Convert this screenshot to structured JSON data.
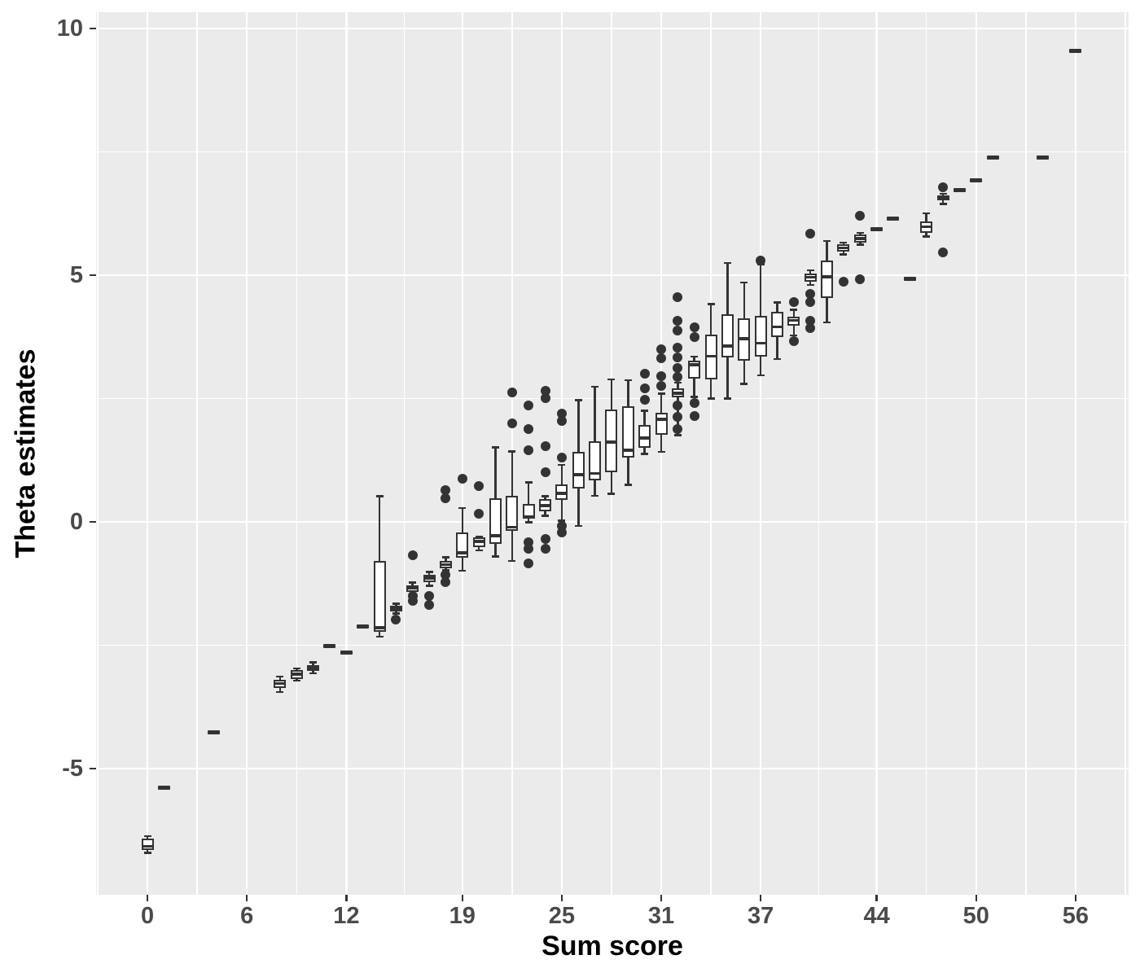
{
  "chart_data": {
    "type": "boxplot",
    "title": "",
    "xlabel": "Sum score",
    "ylabel": "Theta estimates",
    "xlim": [
      -3.1,
      59.2
    ],
    "ylim": [
      -7.56,
      10.33
    ],
    "grid": true,
    "legend": "none",
    "x_tick_values": [
      0,
      6,
      12,
      19,
      25,
      31,
      37,
      44,
      50,
      56
    ],
    "x_tick_labels": [
      "0",
      "6",
      "12",
      "19",
      "25",
      "31",
      "37",
      "44",
      "50",
      "56"
    ],
    "x_minor_breaks": [
      -3,
      3,
      9,
      15.5,
      22,
      28,
      34,
      40.5,
      47,
      53,
      59
    ],
    "y_tick_values": [
      10,
      5,
      0,
      -5
    ],
    "y_tick_labels": [
      "10",
      "5",
      "0",
      "-5"
    ],
    "y_minor_breaks": [
      7.5,
      2.5,
      -2.5
    ],
    "colors": {
      "panel_background": "#EBEBEB",
      "gridline": "#FFFFFF",
      "box_stroke": "#333333",
      "box_fill": "#FFFFFF",
      "outlier": "#333333",
      "tick_text": "#4A4A4A",
      "title_text": "#000000"
    },
    "boxes": [
      {
        "score": 0,
        "lo": -6.71,
        "q1": -6.66,
        "med": -6.58,
        "q3": -6.42,
        "hi": -6.37,
        "outliers": []
      },
      {
        "score": 1,
        "lo": -5.39,
        "q1": -5.39,
        "med": -5.39,
        "q3": -5.39,
        "hi": -5.39,
        "outliers": []
      },
      {
        "score": 4,
        "lo": -4.27,
        "q1": -4.27,
        "med": -4.27,
        "q3": -4.27,
        "hi": -4.27,
        "outliers": []
      },
      {
        "score": 8,
        "lo": -3.45,
        "q1": -3.37,
        "med": -3.28,
        "q3": -3.2,
        "hi": -3.14,
        "outliers": []
      },
      {
        "score": 9,
        "lo": -3.22,
        "q1": -3.18,
        "med": -3.09,
        "q3": -3.01,
        "hi": -2.97,
        "outliers": []
      },
      {
        "score": 10,
        "lo": -3.07,
        "q1": -3.02,
        "med": -2.96,
        "q3": -2.9,
        "hi": -2.85,
        "outliers": []
      },
      {
        "score": 11,
        "lo": -2.52,
        "q1": -2.52,
        "med": -2.52,
        "q3": -2.52,
        "hi": -2.52,
        "outliers": []
      },
      {
        "score": 12,
        "lo": -2.65,
        "q1": -2.65,
        "med": -2.65,
        "q3": -2.65,
        "hi": -2.65,
        "outliers": []
      },
      {
        "score": 13,
        "lo": -2.12,
        "q1": -2.12,
        "med": -2.12,
        "q3": -2.12,
        "hi": -2.12,
        "outliers": []
      },
      {
        "score": 14,
        "lo": -2.33,
        "q1": -2.23,
        "med": -2.15,
        "q3": -0.8,
        "hi": 0.52,
        "outliers": []
      },
      {
        "score": 15,
        "lo": -1.86,
        "q1": -1.82,
        "med": -1.75,
        "q3": -1.7,
        "hi": -1.66,
        "outliers": [
          -1.98
        ]
      },
      {
        "score": 16,
        "lo": -1.45,
        "q1": -1.42,
        "med": -1.35,
        "q3": -1.29,
        "hi": -1.23,
        "outliers": [
          -0.68,
          -1.5,
          -1.6
        ]
      },
      {
        "score": 17,
        "lo": -1.3,
        "q1": -1.22,
        "med": -1.14,
        "q3": -1.07,
        "hi": -1.02,
        "outliers": [
          -1.5,
          -1.68
        ]
      },
      {
        "score": 18,
        "lo": -0.98,
        "q1": -0.95,
        "med": -0.87,
        "q3": -0.79,
        "hi": -0.72,
        "outliers": [
          0.65,
          0.48,
          -1.08,
          -1.22
        ]
      },
      {
        "score": 19,
        "lo": -0.99,
        "q1": -0.73,
        "med": -0.63,
        "q3": -0.21,
        "hi": 0.28,
        "outliers": [
          0.88
        ]
      },
      {
        "score": 20,
        "lo": -0.58,
        "q1": -0.51,
        "med": -0.4,
        "q3": -0.32,
        "hi": -0.3,
        "outliers": [
          0.73,
          0.16
        ]
      },
      {
        "score": 21,
        "lo": -0.7,
        "q1": -0.44,
        "med": -0.28,
        "q3": 0.47,
        "hi": 1.51,
        "outliers": []
      },
      {
        "score": 22,
        "lo": -0.79,
        "q1": -0.19,
        "med": -0.11,
        "q3": 0.52,
        "hi": 1.43,
        "outliers": [
          2.63,
          1.99
        ]
      },
      {
        "score": 23,
        "lo": -0.01,
        "q1": 0.06,
        "med": 0.11,
        "q3": 0.37,
        "hi": 0.8,
        "outliers": [
          2.36,
          1.88,
          1.45,
          -0.42,
          -0.55,
          -0.84
        ]
      },
      {
        "score": 24,
        "lo": 0.12,
        "q1": 0.21,
        "med": 0.33,
        "q3": 0.46,
        "hi": 0.52,
        "outliers": [
          2.65,
          2.5,
          1.54,
          1.0,
          -0.35,
          -0.55
        ]
      },
      {
        "score": 25,
        "lo": 0.02,
        "q1": 0.45,
        "med": 0.58,
        "q3": 0.76,
        "hi": 1.15,
        "outliers": [
          2.2,
          2.05,
          1.3,
          -0.08,
          -0.22
        ]
      },
      {
        "score": 26,
        "lo": -0.08,
        "q1": 0.68,
        "med": 0.96,
        "q3": 1.42,
        "hi": 2.47,
        "outliers": []
      },
      {
        "score": 27,
        "lo": 0.53,
        "q1": 0.84,
        "med": 0.98,
        "q3": 1.64,
        "hi": 2.74,
        "outliers": []
      },
      {
        "score": 28,
        "lo": 0.57,
        "q1": 1.01,
        "med": 1.62,
        "q3": 2.27,
        "hi": 2.89,
        "outliers": []
      },
      {
        "score": 29,
        "lo": 0.75,
        "q1": 1.31,
        "med": 1.45,
        "q3": 2.34,
        "hi": 2.87,
        "outliers": []
      },
      {
        "score": 30,
        "lo": 1.38,
        "q1": 1.5,
        "med": 1.7,
        "q3": 1.96,
        "hi": 2.25,
        "outliers": [
          3.0,
          2.7,
          2.47
        ]
      },
      {
        "score": 31,
        "lo": 1.42,
        "q1": 1.77,
        "med": 2.08,
        "q3": 2.21,
        "hi": 2.6,
        "outliers": [
          3.5,
          3.32,
          2.95,
          2.76
        ]
      },
      {
        "score": 32,
        "lo": 1.76,
        "q1": 2.53,
        "med": 2.61,
        "q3": 2.7,
        "hi": 2.82,
        "outliers": [
          4.56,
          4.07,
          3.88,
          3.53,
          3.33,
          3.12,
          2.93,
          2.36,
          2.12,
          1.88
        ]
      },
      {
        "score": 33,
        "lo": 2.53,
        "q1": 2.91,
        "med": 3.18,
        "q3": 3.27,
        "hi": 3.35,
        "outliers": [
          3.95,
          3.75,
          2.4,
          2.15
        ]
      },
      {
        "score": 34,
        "lo": 2.5,
        "q1": 2.89,
        "med": 3.36,
        "q3": 3.79,
        "hi": 4.41,
        "outliers": []
      },
      {
        "score": 35,
        "lo": 2.5,
        "q1": 3.33,
        "med": 3.56,
        "q3": 4.2,
        "hi": 5.25,
        "outliers": []
      },
      {
        "score": 36,
        "lo": 2.8,
        "q1": 3.26,
        "med": 3.71,
        "q3": 4.13,
        "hi": 4.85,
        "outliers": []
      },
      {
        "score": 37,
        "lo": 2.97,
        "q1": 3.35,
        "med": 3.62,
        "q3": 4.17,
        "hi": 5.22,
        "outliers": [
          5.3
        ]
      },
      {
        "score": 38,
        "lo": 3.3,
        "q1": 3.74,
        "med": 3.95,
        "q3": 4.26,
        "hi": 4.45,
        "outliers": []
      },
      {
        "score": 39,
        "lo": 3.78,
        "q1": 3.98,
        "med": 4.08,
        "q3": 4.15,
        "hi": 4.3,
        "outliers": [
          4.46,
          3.66
        ]
      },
      {
        "score": 40,
        "lo": 4.8,
        "q1": 4.87,
        "med": 4.96,
        "q3": 5.04,
        "hi": 5.1,
        "outliers": [
          5.84,
          4.62,
          4.45,
          4.08,
          3.92
        ]
      },
      {
        "score": 41,
        "lo": 4.04,
        "q1": 4.53,
        "med": 4.97,
        "q3": 5.3,
        "hi": 5.69,
        "outliers": []
      },
      {
        "score": 42,
        "lo": 5.42,
        "q1": 5.48,
        "med": 5.55,
        "q3": 5.62,
        "hi": 5.66,
        "outliers": [
          4.87
        ]
      },
      {
        "score": 43,
        "lo": 5.62,
        "q1": 5.66,
        "med": 5.74,
        "q3": 5.82,
        "hi": 5.86,
        "outliers": [
          6.2,
          4.92
        ]
      },
      {
        "score": 44,
        "lo": 5.93,
        "q1": 5.93,
        "med": 5.93,
        "q3": 5.93,
        "hi": 5.93,
        "outliers": []
      },
      {
        "score": 45,
        "lo": 6.14,
        "q1": 6.14,
        "med": 6.14,
        "q3": 6.14,
        "hi": 6.14,
        "outliers": []
      },
      {
        "score": 46,
        "lo": 4.93,
        "q1": 4.93,
        "med": 4.93,
        "q3": 4.93,
        "hi": 4.93,
        "outliers": []
      },
      {
        "score": 47,
        "lo": 5.78,
        "q1": 5.86,
        "med": 5.98,
        "q3": 6.09,
        "hi": 6.25,
        "outliers": []
      },
      {
        "score": 48,
        "lo": 6.44,
        "q1": 6.51,
        "med": 6.57,
        "q3": 6.62,
        "hi": 6.65,
        "outliers": [
          6.78,
          5.46
        ]
      },
      {
        "score": 49,
        "lo": 6.72,
        "q1": 6.72,
        "med": 6.72,
        "q3": 6.72,
        "hi": 6.72,
        "outliers": []
      },
      {
        "score": 50,
        "lo": 6.92,
        "q1": 6.92,
        "med": 6.92,
        "q3": 6.92,
        "hi": 6.92,
        "outliers": []
      },
      {
        "score": 51,
        "lo": 7.39,
        "q1": 7.39,
        "med": 7.39,
        "q3": 7.39,
        "hi": 7.39,
        "outliers": []
      },
      {
        "score": 54,
        "lo": 7.39,
        "q1": 7.39,
        "med": 7.39,
        "q3": 7.39,
        "hi": 7.39,
        "outliers": []
      },
      {
        "score": 56,
        "lo": 9.55,
        "q1": 9.55,
        "med": 9.55,
        "q3": 9.55,
        "hi": 9.55,
        "outliers": []
      }
    ]
  }
}
